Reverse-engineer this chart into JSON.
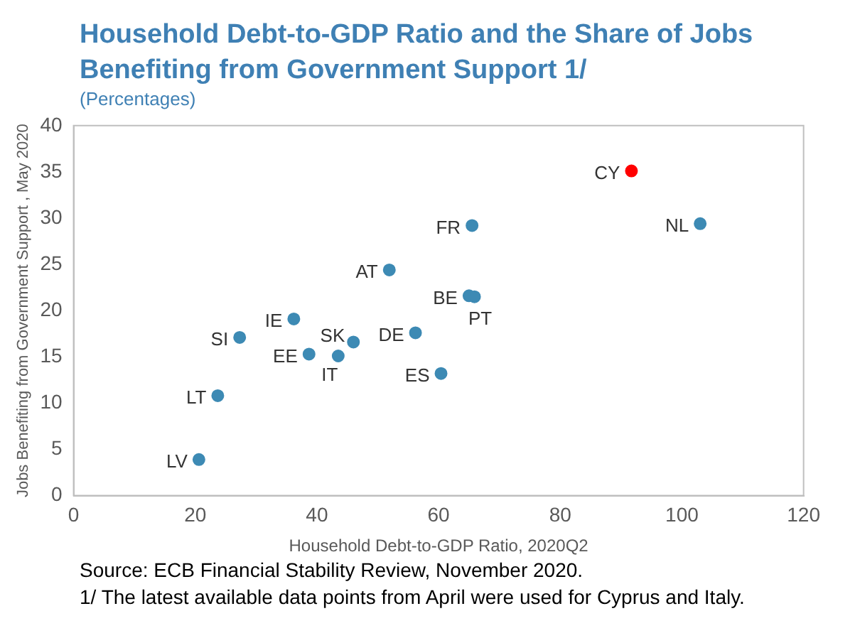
{
  "chart_data": {
    "type": "scatter",
    "title": "Household Debt-to-GDP Ratio and the Share of Jobs Benefiting from Government Support 1/",
    "subtitle": "(Percentages)",
    "xlabel": "Household Debt-to-GDP Ratio, 2020Q2",
    "ylabel": "Jobs Benefiting from Government Support , May 2020",
    "x": [
      20.6,
      23.7,
      27.3,
      36.2,
      38.7,
      43.5,
      46.0,
      51.9,
      56.2,
      60.4,
      65.5,
      65.0,
      65.9,
      91.7,
      103.0
    ],
    "values": [
      3.9,
      10.8,
      17.1,
      19.1,
      15.3,
      15.1,
      16.6,
      24.4,
      17.6,
      13.2,
      29.2,
      21.6,
      21.5,
      35.1,
      29.4
    ],
    "colors": [
      "#3d8ab4",
      "#3d8ab4",
      "#3d8ab4",
      "#3d8ab4",
      "#3d8ab4",
      "#3d8ab4",
      "#3d8ab4",
      "#3d8ab4",
      "#3d8ab4",
      "#3d8ab4",
      "#3d8ab4",
      "#3d8ab4",
      "#3d8ab4",
      "#ff0000",
      "#3d8ab4"
    ],
    "marker": "circle",
    "xlim": [
      0,
      120
    ],
    "xticks": [
      0,
      20,
      40,
      60,
      80,
      100,
      120
    ],
    "ylim": [
      0,
      40
    ],
    "yticks": [
      0,
      5,
      10,
      15,
      20,
      25,
      30,
      35,
      40
    ],
    "grid": false,
    "legend": false,
    "annotations": [
      {
        "text": "LV",
        "x": 20.6,
        "y": 3.9
      },
      {
        "text": "LT",
        "x": 23.7,
        "y": 10.8
      },
      {
        "text": "SI",
        "x": 27.3,
        "y": 17.1
      },
      {
        "text": "IE",
        "x": 36.2,
        "y": 19.1
      },
      {
        "text": "EE",
        "x": 38.7,
        "y": 15.3
      },
      {
        "text": "IT",
        "x": 43.5,
        "y": 15.1
      },
      {
        "text": "SK",
        "x": 46.0,
        "y": 16.6
      },
      {
        "text": "AT",
        "x": 51.9,
        "y": 24.4
      },
      {
        "text": "DE",
        "x": 56.2,
        "y": 17.6
      },
      {
        "text": "ES",
        "x": 60.4,
        "y": 13.2
      },
      {
        "text": "FR",
        "x": 65.5,
        "y": 29.2
      },
      {
        "text": "BE",
        "x": 65.0,
        "y": 21.6
      },
      {
        "text": "PT",
        "x": 65.9,
        "y": 21.5
      },
      {
        "text": "CY",
        "x": 91.7,
        "y": 35.1
      },
      {
        "text": "NL",
        "x": 103.0,
        "y": 29.4
      },
      "Source: ECB Financial Stability Review, November 2020.",
      "1/ The latest available data points from April were used for Cyprus and Italy."
    ]
  }
}
